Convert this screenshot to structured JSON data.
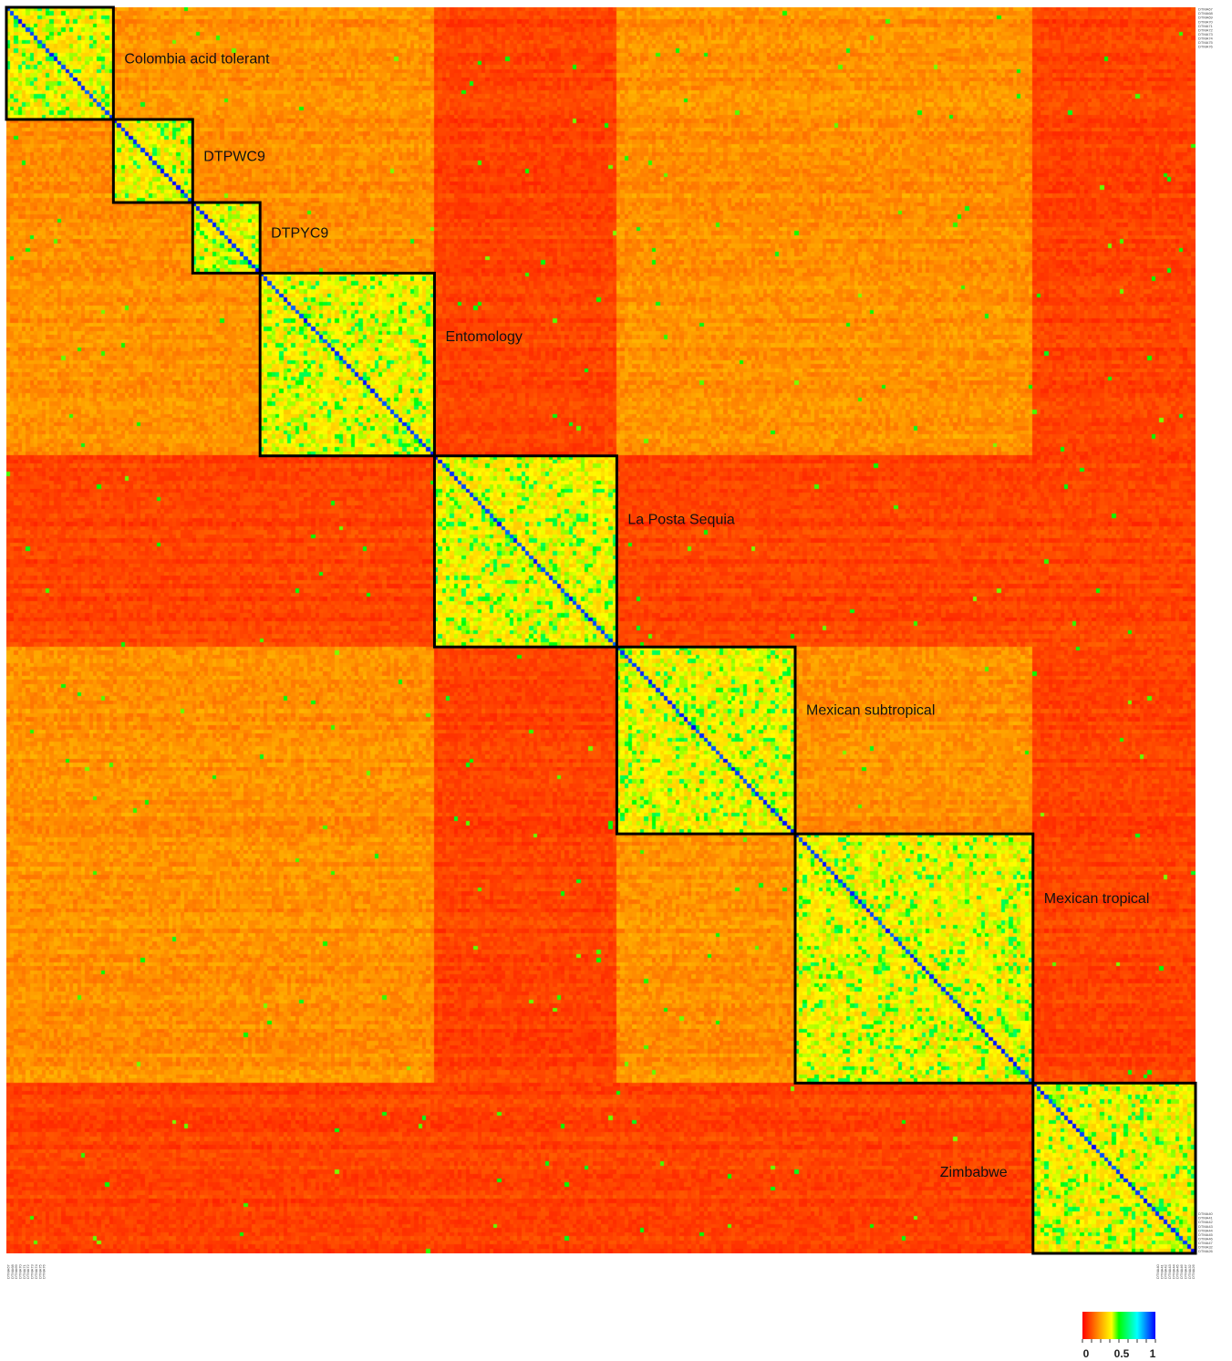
{
  "chart_data": {
    "type": "heatmap",
    "title": "",
    "xlabel": "",
    "ylabel": "",
    "n_lines": 300,
    "color_scale": {
      "min": 0,
      "max": 1,
      "stops": [
        {
          "value": 0.0,
          "color": "#ff0000"
        },
        {
          "value": 0.25,
          "color": "#ffa500"
        },
        {
          "value": 0.4,
          "color": "#ffff00"
        },
        {
          "value": 0.5,
          "color": "#00ff00"
        },
        {
          "value": 0.75,
          "color": "#00ffff"
        },
        {
          "value": 1.0,
          "color": "#0000ff"
        }
      ],
      "tick_labels": [
        "0",
        "0.5",
        "1"
      ],
      "tick_values": [
        0,
        0.5,
        1
      ]
    },
    "clusters": [
      {
        "name": "Colombia acid tolerant",
        "start": 0,
        "end": 27
      },
      {
        "name": "DTPWC9",
        "start": 27,
        "end": 47
      },
      {
        "name": "DTPYC9",
        "start": 47,
        "end": 64
      },
      {
        "name": "Entomology",
        "start": 64,
        "end": 108
      },
      {
        "name": "La Posta Sequia",
        "start": 108,
        "end": 154
      },
      {
        "name": "Mexican subtropical",
        "start": 154,
        "end": 199
      },
      {
        "name": "Mexican tropical",
        "start": 199,
        "end": 259
      },
      {
        "name": "Zimbabwe",
        "start": 259,
        "end": 300
      }
    ],
    "typical_values": {
      "background": 0.22,
      "low_similarity_rows": 0.1,
      "within_cluster": 0.38,
      "diagonal": 1.0
    },
    "tick_labels_start": [
      "DTMA67",
      "DTMA68",
      "DTMA69",
      "DTMA70",
      "DTMA71",
      "DTMA72",
      "DTMA73",
      "DTMA74",
      "DTMA75",
      "DTMA76"
    ],
    "tick_labels_end": [
      "DTMA40",
      "DTMA41",
      "DTMA42",
      "DTMA43",
      "DTMA44",
      "DTMA45",
      "DTMA46",
      "DTMA47",
      "DTMA32",
      "DTMA26"
    ],
    "legend_position": "bottom-right"
  }
}
